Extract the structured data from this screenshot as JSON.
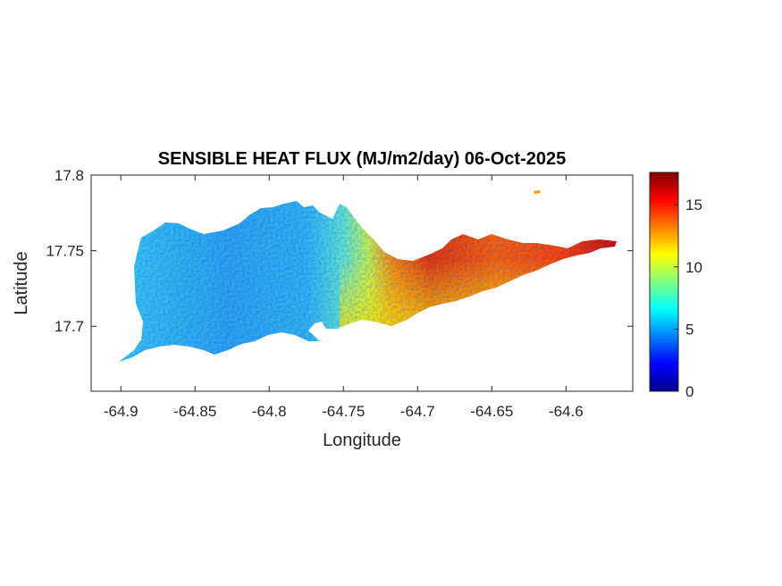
{
  "chart_data": {
    "type": "heatmap",
    "title": "SENSIBLE HEAT FLUX (MJ/m2/day) 06-Oct-2025",
    "xlabel": "Longitude",
    "ylabel": "Latitude",
    "xlim": [
      -64.92,
      -64.555
    ],
    "ylim": [
      17.657,
      17.8
    ],
    "xticks": [
      -64.9,
      -64.85,
      -64.8,
      -64.75,
      -64.7,
      -64.65,
      -64.6
    ],
    "xtick_labels": [
      "-64.9",
      "-64.85",
      "-64.8",
      "-64.75",
      "-64.7",
      "-64.65",
      "-64.6"
    ],
    "yticks": [
      17.7,
      17.75,
      17.8
    ],
    "ytick_labels": [
      "17.7",
      "17.75",
      "17.8"
    ],
    "colorbar": {
      "colormap": "jet",
      "range": [
        0,
        17.6
      ],
      "ticks": [
        0,
        5,
        10,
        15
      ],
      "tick_labels": [
        "0",
        "5",
        "10",
        "15"
      ]
    },
    "grid": false,
    "field_summary": {
      "west_region_value_approx": 5,
      "central_region_value_approx": 8,
      "southeast_coast_value_approx": 11,
      "east_region_value_approx": 15,
      "east_tip_value_approx": 17
    }
  }
}
